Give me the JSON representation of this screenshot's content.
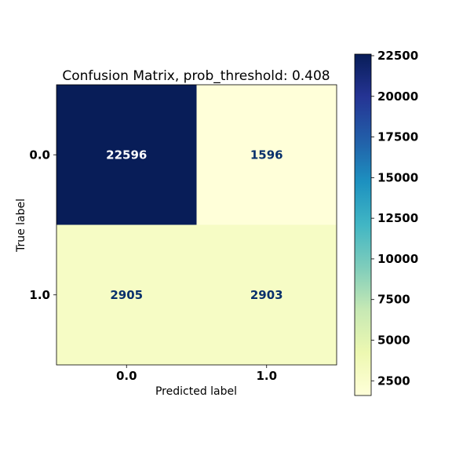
{
  "chart_data": {
    "type": "heatmap",
    "title": "Confusion Matrix, prob_threshold: 0.408",
    "xlabel": "Predicted label",
    "ylabel": "True label",
    "x_categories": [
      "0.0",
      "1.0"
    ],
    "y_categories": [
      "0.0",
      "1.0"
    ],
    "values": [
      [
        22596,
        1596
      ],
      [
        2905,
        2903
      ]
    ],
    "colormap": "YlGnBu",
    "colorbar": {
      "range": [
        1596,
        22596
      ],
      "ticks": [
        2500,
        5000,
        7500,
        10000,
        12500,
        15000,
        17500,
        20000,
        22500
      ],
      "labels": [
        "2500",
        "5000",
        "7500",
        "10000",
        "12500",
        "15000",
        "17500",
        "20000",
        "22500"
      ],
      "position": "right"
    },
    "cell_text_color": "#08306b"
  }
}
